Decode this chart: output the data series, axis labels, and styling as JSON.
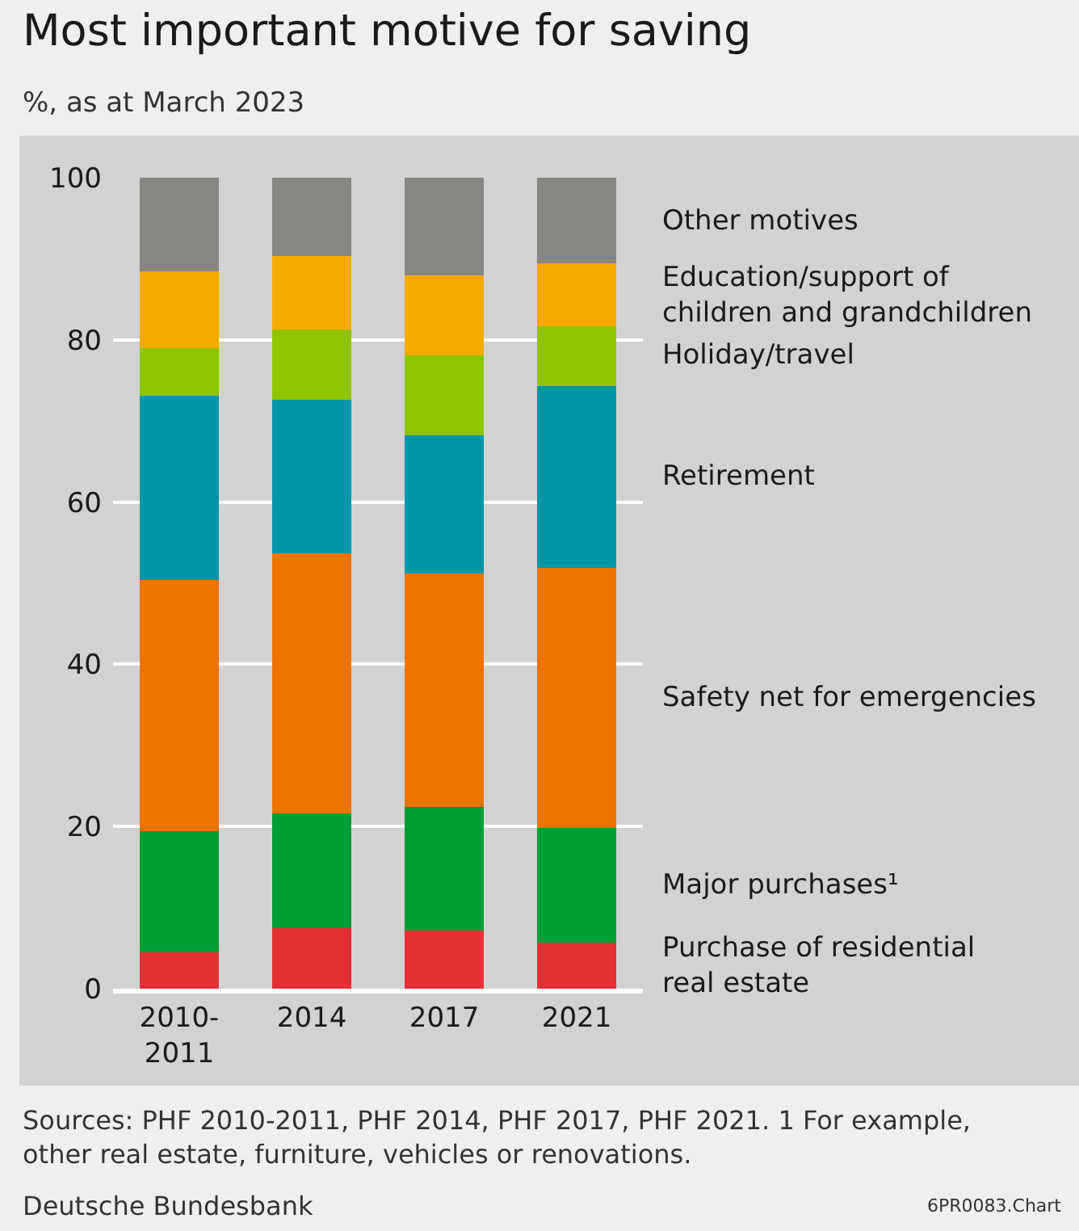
{
  "chart_data": {
    "type": "bar",
    "stacked": true,
    "title": "Most important motive for saving",
    "subtitle": "%, as at March 2023",
    "categories": [
      "2010-2011",
      "2014",
      "2017",
      "2021"
    ],
    "series": [
      {
        "name": "Purchase of residential real estate",
        "color": "#e23036",
        "values": [
          4.5,
          7.5,
          7.2,
          5.7
        ]
      },
      {
        "name": "Major purchases¹",
        "color": "#009e35",
        "values": [
          14.9,
          14.1,
          15.2,
          14.1
        ]
      },
      {
        "name": "Safety net for emergencies",
        "color": "#ee7300",
        "values": [
          31.0,
          32.1,
          28.8,
          32.1
        ]
      },
      {
        "name": "Retirement",
        "color": "#0096a8",
        "values": [
          22.7,
          18.9,
          17.0,
          22.4
        ]
      },
      {
        "name": "Holiday/travel",
        "color": "#8fc400",
        "values": [
          5.9,
          8.7,
          9.9,
          7.4
        ]
      },
      {
        "name": "Education/support of children and grandchildren",
        "color": "#f5aa00",
        "values": [
          9.4,
          9.0,
          9.8,
          7.7
        ]
      },
      {
        "name": "Other motives",
        "color": "#878683",
        "values": [
          11.6,
          9.7,
          12.1,
          10.6
        ]
      }
    ],
    "ylim": [
      0,
      100
    ],
    "yticks": [
      0,
      20,
      40,
      60,
      80,
      100
    ],
    "grid": "y",
    "legend": false,
    "annotations": [
      "Sources: PHF 2010-2011, PHF 2014, PHF 2017, PHF 2021. 1 For example, other real estate, furniture, vehicles or renovations.",
      "Deutsche Bundesbank",
      "6PR0083.Chart"
    ]
  }
}
